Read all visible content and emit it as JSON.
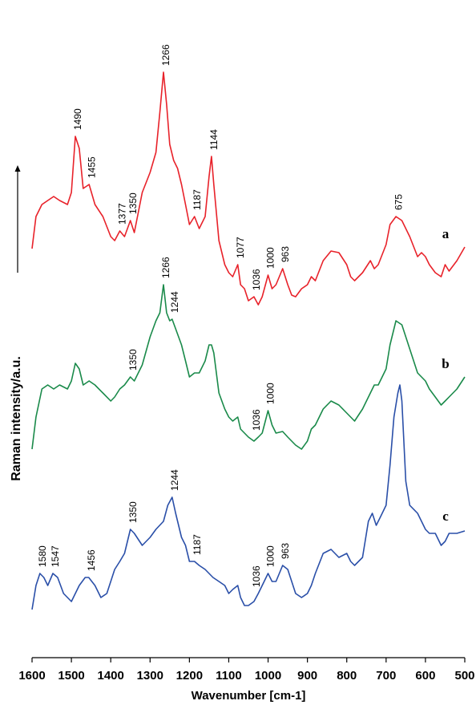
{
  "chart_data": {
    "type": "line",
    "xlabel": "Wavenumber [cm-1]",
    "ylabel": "Raman intensity/a.u.",
    "xlim": [
      1600,
      500
    ],
    "xticks": [
      1600,
      1500,
      1400,
      1300,
      1200,
      1100,
      1000,
      900,
      800,
      700,
      600,
      500
    ],
    "ylim": [
      0,
      820
    ],
    "series": [
      {
        "name": "a",
        "color": "#e8222a",
        "x": [
          1600,
          1590,
          1575,
          1560,
          1545,
          1530,
          1510,
          1500,
          1490,
          1480,
          1470,
          1455,
          1440,
          1420,
          1400,
          1390,
          1377,
          1365,
          1350,
          1340,
          1320,
          1300,
          1285,
          1275,
          1266,
          1258,
          1250,
          1240,
          1230,
          1220,
          1210,
          1200,
          1187,
          1175,
          1160,
          1150,
          1144,
          1138,
          1125,
          1110,
          1100,
          1090,
          1077,
          1070,
          1060,
          1050,
          1036,
          1025,
          1015,
          1000,
          990,
          980,
          963,
          950,
          940,
          930,
          915,
          900,
          890,
          880,
          860,
          840,
          820,
          800,
          790,
          780,
          760,
          740,
          730,
          720,
          700,
          690,
          675,
          660,
          640,
          620,
          610,
          600,
          590,
          575,
          560,
          550,
          540,
          520,
          500
        ],
        "values": [
          510,
          550,
          565,
          570,
          575,
          570,
          565,
          580,
          650,
          635,
          585,
          590,
          565,
          550,
          525,
          520,
          532,
          525,
          545,
          530,
          580,
          605,
          630,
          680,
          730,
          690,
          640,
          620,
          610,
          590,
          565,
          540,
          550,
          535,
          550,
          600,
          625,
          590,
          520,
          490,
          480,
          475,
          490,
          465,
          460,
          445,
          450,
          440,
          450,
          477,
          460,
          465,
          485,
          465,
          452,
          450,
          460,
          465,
          475,
          470,
          495,
          507,
          505,
          490,
          475,
          470,
          480,
          495,
          485,
          490,
          515,
          540,
          550,
          545,
          525,
          500,
          505,
          500,
          490,
          480,
          475,
          490,
          482,
          495,
          512
        ],
        "peaks": [
          1490,
          1455,
          1377,
          1350,
          1266,
          1187,
          1144,
          1077,
          1036,
          1000,
          963,
          675
        ]
      },
      {
        "name": "b",
        "color": "#1a8a4a",
        "x": [
          1600,
          1590,
          1575,
          1560,
          1545,
          1530,
          1510,
          1500,
          1490,
          1480,
          1470,
          1455,
          1440,
          1420,
          1400,
          1390,
          1377,
          1365,
          1350,
          1340,
          1320,
          1300,
          1285,
          1275,
          1266,
          1258,
          1250,
          1244,
          1235,
          1220,
          1210,
          1200,
          1187,
          1175,
          1160,
          1150,
          1144,
          1138,
          1125,
          1110,
          1100,
          1090,
          1077,
          1070,
          1060,
          1050,
          1036,
          1025,
          1015,
          1000,
          990,
          980,
          963,
          950,
          940,
          930,
          915,
          900,
          890,
          880,
          860,
          840,
          820,
          800,
          790,
          780,
          760,
          740,
          730,
          720,
          700,
          690,
          675,
          660,
          640,
          620,
          610,
          600,
          590,
          575,
          560,
          550,
          540,
          520,
          500
        ],
        "values": [
          260,
          300,
          335,
          340,
          335,
          340,
          335,
          345,
          367,
          360,
          340,
          345,
          340,
          330,
          320,
          325,
          335,
          340,
          350,
          345,
          365,
          400,
          420,
          430,
          465,
          430,
          420,
          422,
          410,
          390,
          370,
          350,
          355,
          355,
          370,
          390,
          390,
          380,
          330,
          310,
          300,
          295,
          300,
          285,
          280,
          275,
          270,
          275,
          280,
          308,
          290,
          280,
          282,
          275,
          270,
          265,
          260,
          270,
          285,
          290,
          310,
          320,
          315,
          305,
          300,
          295,
          310,
          330,
          340,
          340,
          360,
          390,
          420,
          415,
          385,
          355,
          350,
          345,
          335,
          325,
          315,
          320,
          325,
          335,
          350
        ],
        "peaks": [
          1350,
          1266,
          1244,
          1036,
          1000
        ]
      },
      {
        "name": "c",
        "color": "#2a4fa8",
        "x": [
          1600,
          1590,
          1580,
          1570,
          1560,
          1547,
          1535,
          1520,
          1500,
          1480,
          1465,
          1456,
          1440,
          1425,
          1410,
          1400,
          1390,
          1377,
          1365,
          1350,
          1340,
          1320,
          1300,
          1285,
          1266,
          1255,
          1244,
          1235,
          1220,
          1210,
          1200,
          1187,
          1175,
          1160,
          1150,
          1140,
          1125,
          1110,
          1100,
          1090,
          1077,
          1070,
          1060,
          1050,
          1036,
          1025,
          1015,
          1000,
          990,
          980,
          963,
          950,
          940,
          930,
          915,
          900,
          890,
          880,
          860,
          840,
          820,
          800,
          790,
          780,
          760,
          745,
          735,
          725,
          715,
          700,
          690,
          680,
          670,
          665,
          660,
          650,
          640,
          620,
          610,
          600,
          590,
          575,
          560,
          550,
          540,
          520,
          500
        ],
        "values": [
          60,
          90,
          105,
          100,
          90,
          105,
          100,
          80,
          70,
          90,
          100,
          100,
          90,
          75,
          80,
          95,
          110,
          120,
          130,
          160,
          155,
          140,
          150,
          160,
          170,
          190,
          200,
          180,
          150,
          140,
          120,
          120,
          115,
          110,
          105,
          100,
          95,
          90,
          80,
          85,
          90,
          75,
          65,
          65,
          70,
          80,
          90,
          105,
          95,
          95,
          115,
          110,
          95,
          80,
          75,
          80,
          90,
          105,
          130,
          135,
          125,
          130,
          120,
          115,
          125,
          170,
          180,
          165,
          175,
          190,
          240,
          300,
          330,
          340,
          320,
          220,
          190,
          180,
          170,
          160,
          155,
          155,
          140,
          145,
          155,
          155,
          158
        ],
        "peaks": [
          1580,
          1547,
          1456,
          1350,
          1244,
          1187,
          1036,
          1000,
          963
        ]
      }
    ]
  }
}
